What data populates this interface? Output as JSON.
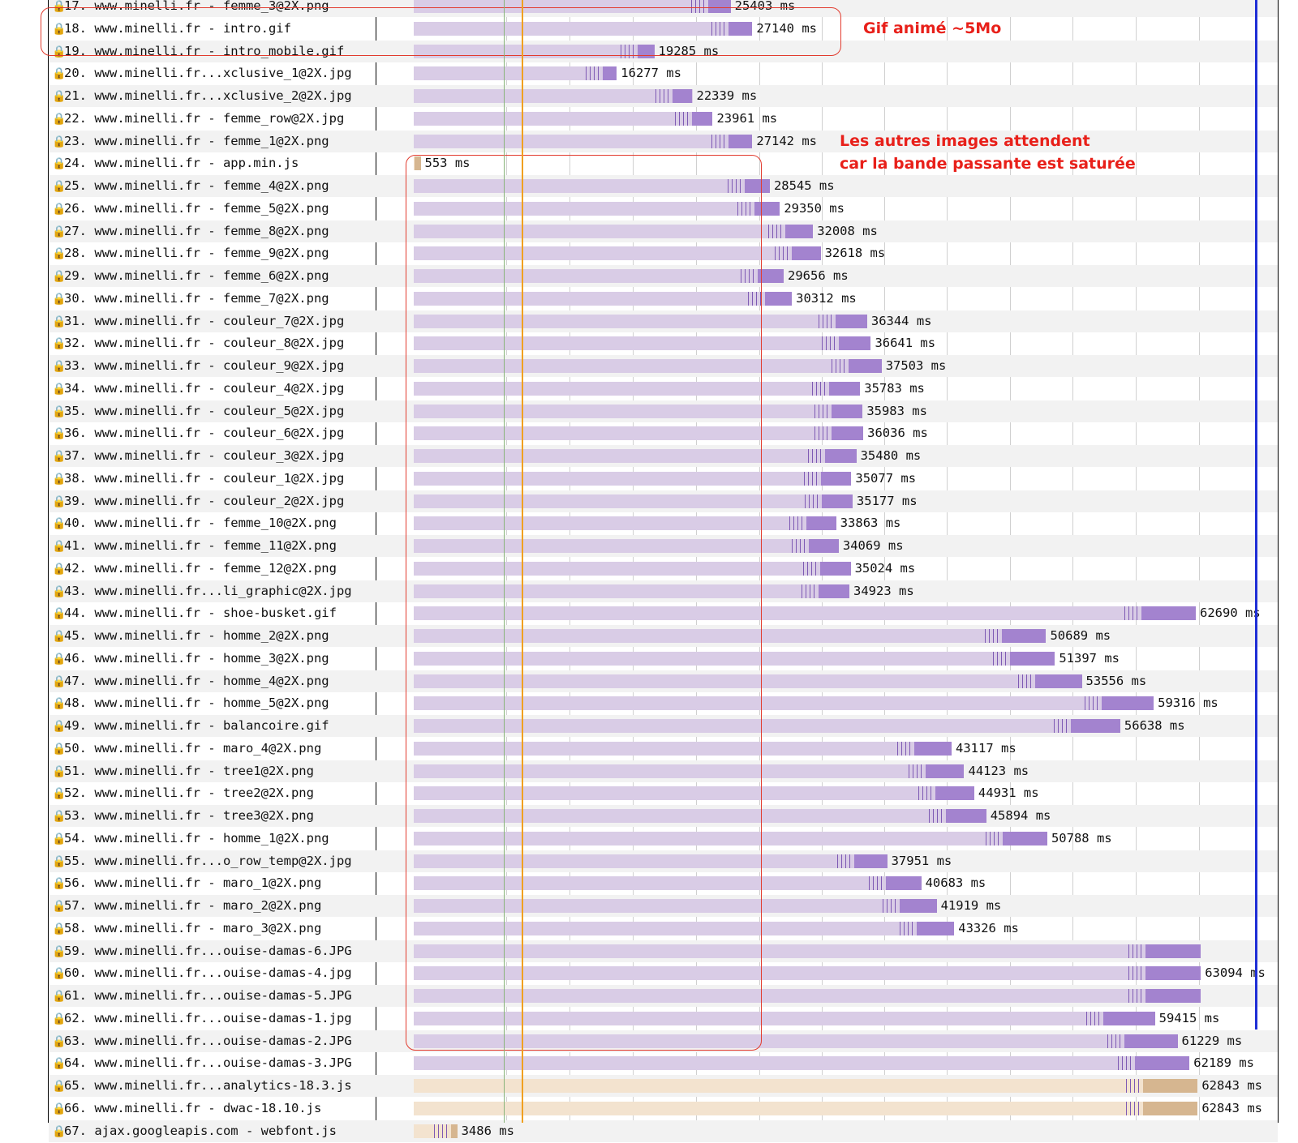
{
  "requests": [
    {
      "label": "17. www.minelli.fr - femme_3@2X.png",
      "start_ms": 0,
      "end_ms": 25403,
      "duration": "25403 ms",
      "type": "image",
      "cut": true
    },
    {
      "label": "18. www.minelli.fr - intro.gif",
      "start_ms": 0,
      "end_ms": 27140,
      "duration": "27140 ms",
      "type": "image"
    },
    {
      "label": "19. www.minelli.fr - intro_mobile.gif",
      "start_ms": 0,
      "end_ms": 19285,
      "duration": "19285 ms",
      "type": "image"
    },
    {
      "label": "20. www.minelli.fr...xclusive_1@2X.jpg",
      "start_ms": 0,
      "end_ms": 16277,
      "duration": "16277 ms",
      "type": "image"
    },
    {
      "label": "21. www.minelli.fr...xclusive_2@2X.jpg",
      "start_ms": 0,
      "end_ms": 22339,
      "duration": "22339 ms",
      "type": "image"
    },
    {
      "label": "22. www.minelli.fr - femme_row@2X.jpg",
      "start_ms": 0,
      "end_ms": 23961,
      "duration": "23961 ms",
      "type": "image"
    },
    {
      "label": "23. www.minelli.fr - femme_1@2X.png",
      "start_ms": 0,
      "end_ms": 27142,
      "duration": "27142 ms",
      "type": "image"
    },
    {
      "label": "24. www.minelli.fr - app.min.js",
      "start_ms": 0,
      "end_ms": 553,
      "duration": "553 ms",
      "type": "script"
    },
    {
      "label": "25. www.minelli.fr - femme_4@2X.png",
      "start_ms": 0,
      "end_ms": 28545,
      "duration": "28545 ms",
      "type": "image"
    },
    {
      "label": "26. www.minelli.fr - femme_5@2X.png",
      "start_ms": 0,
      "end_ms": 29350,
      "duration": "29350 ms",
      "type": "image"
    },
    {
      "label": "27. www.minelli.fr - femme_8@2X.png",
      "start_ms": 0,
      "end_ms": 32008,
      "duration": "32008 ms",
      "type": "image"
    },
    {
      "label": "28. www.minelli.fr - femme_9@2X.png",
      "start_ms": 0,
      "end_ms": 32618,
      "duration": "32618 ms",
      "type": "image"
    },
    {
      "label": "29. www.minelli.fr - femme_6@2X.png",
      "start_ms": 0,
      "end_ms": 29656,
      "duration": "29656 ms",
      "type": "image"
    },
    {
      "label": "30. www.minelli.fr - femme_7@2X.png",
      "start_ms": 0,
      "end_ms": 30312,
      "duration": "30312 ms",
      "type": "image"
    },
    {
      "label": "31. www.minelli.fr - couleur_7@2X.jpg",
      "start_ms": 0,
      "end_ms": 36344,
      "duration": "36344 ms",
      "type": "image"
    },
    {
      "label": "32. www.minelli.fr - couleur_8@2X.jpg",
      "start_ms": 0,
      "end_ms": 36641,
      "duration": "36641 ms",
      "type": "image"
    },
    {
      "label": "33. www.minelli.fr - couleur_9@2X.jpg",
      "start_ms": 0,
      "end_ms": 37503,
      "duration": "37503 ms",
      "type": "image"
    },
    {
      "label": "34. www.minelli.fr - couleur_4@2X.jpg",
      "start_ms": 0,
      "end_ms": 35783,
      "duration": "35783 ms",
      "type": "image"
    },
    {
      "label": "35. www.minelli.fr - couleur_5@2X.jpg",
      "start_ms": 0,
      "end_ms": 35983,
      "duration": "35983 ms",
      "type": "image"
    },
    {
      "label": "36. www.minelli.fr - couleur_6@2X.jpg",
      "start_ms": 0,
      "end_ms": 36036,
      "duration": "36036 ms",
      "type": "image"
    },
    {
      "label": "37. www.minelli.fr - couleur_3@2X.jpg",
      "start_ms": 0,
      "end_ms": 35480,
      "duration": "35480 ms",
      "type": "image"
    },
    {
      "label": "38. www.minelli.fr - couleur_1@2X.jpg",
      "start_ms": 0,
      "end_ms": 35077,
      "duration": "35077 ms",
      "type": "image"
    },
    {
      "label": "39. www.minelli.fr - couleur_2@2X.jpg",
      "start_ms": 0,
      "end_ms": 35177,
      "duration": "35177 ms",
      "type": "image"
    },
    {
      "label": "40. www.minelli.fr - femme_10@2X.png",
      "start_ms": 0,
      "end_ms": 33863,
      "duration": "33863 ms",
      "type": "image"
    },
    {
      "label": "41. www.minelli.fr - femme_11@2X.png",
      "start_ms": 0,
      "end_ms": 34069,
      "duration": "34069 ms",
      "type": "image"
    },
    {
      "label": "42. www.minelli.fr - femme_12@2X.png",
      "start_ms": 0,
      "end_ms": 35024,
      "duration": "35024 ms",
      "type": "image"
    },
    {
      "label": "43. www.minelli.fr...li_graphic@2X.jpg",
      "start_ms": 0,
      "end_ms": 34923,
      "duration": "34923 ms",
      "type": "image"
    },
    {
      "label": "44. www.minelli.fr - shoe-busket.gif",
      "start_ms": 0,
      "end_ms": 62690,
      "duration": "62690 ms",
      "type": "image"
    },
    {
      "label": "45. www.minelli.fr - homme_2@2X.png",
      "start_ms": 0,
      "end_ms": 50689,
      "duration": "50689 ms",
      "type": "image"
    },
    {
      "label": "46. www.minelli.fr - homme_3@2X.png",
      "start_ms": 0,
      "end_ms": 51397,
      "duration": "51397 ms",
      "type": "image"
    },
    {
      "label": "47. www.minelli.fr - homme_4@2X.png",
      "start_ms": 0,
      "end_ms": 53556,
      "duration": "53556 ms",
      "type": "image"
    },
    {
      "label": "48. www.minelli.fr - homme_5@2X.png",
      "start_ms": 0,
      "end_ms": 59316,
      "duration": "59316 ms",
      "type": "image"
    },
    {
      "label": "49. www.minelli.fr - balancoire.gif",
      "start_ms": 0,
      "end_ms": 56638,
      "duration": "56638 ms",
      "type": "image"
    },
    {
      "label": "50. www.minelli.fr - maro_4@2X.png",
      "start_ms": 0,
      "end_ms": 43117,
      "duration": "43117 ms",
      "type": "image"
    },
    {
      "label": "51. www.minelli.fr - tree1@2X.png",
      "start_ms": 0,
      "end_ms": 44123,
      "duration": "44123 ms",
      "type": "image"
    },
    {
      "label": "52. www.minelli.fr - tree2@2X.png",
      "start_ms": 0,
      "end_ms": 44931,
      "duration": "44931 ms",
      "type": "image"
    },
    {
      "label": "53. www.minelli.fr - tree3@2X.png",
      "start_ms": 0,
      "end_ms": 45894,
      "duration": "45894 ms",
      "type": "image"
    },
    {
      "label": "54. www.minelli.fr - homme_1@2X.png",
      "start_ms": 0,
      "end_ms": 50788,
      "duration": "50788 ms",
      "type": "image"
    },
    {
      "label": "55. www.minelli.fr...o_row_temp@2X.jpg",
      "start_ms": 0,
      "end_ms": 37951,
      "duration": "37951 ms",
      "type": "image"
    },
    {
      "label": "56. www.minelli.fr - maro_1@2X.png",
      "start_ms": 0,
      "end_ms": 40683,
      "duration": "40683 ms",
      "type": "image"
    },
    {
      "label": "57. www.minelli.fr - maro_2@2X.png",
      "start_ms": 0,
      "end_ms": 41919,
      "duration": "41919 ms",
      "type": "image"
    },
    {
      "label": "58. www.minelli.fr - maro_3@2X.png",
      "start_ms": 0,
      "end_ms": 43326,
      "duration": "43326 ms",
      "type": "image"
    },
    {
      "label": "59. www.minelli.fr...ouise-damas-6.JPG",
      "start_ms": 0,
      "end_ms": 63094,
      "duration": "",
      "type": "image"
    },
    {
      "label": "60. www.minelli.fr...ouise-damas-4.jpg",
      "start_ms": 0,
      "end_ms": 63094,
      "duration": "63094 ms",
      "type": "image"
    },
    {
      "label": "61. www.minelli.fr...ouise-damas-5.JPG",
      "start_ms": 0,
      "end_ms": 63094,
      "duration": "",
      "type": "image"
    },
    {
      "label": "62. www.minelli.fr...ouise-damas-1.jpg",
      "start_ms": 0,
      "end_ms": 59415,
      "duration": "59415 ms",
      "type": "image"
    },
    {
      "label": "63. www.minelli.fr...ouise-damas-2.JPG",
      "start_ms": 0,
      "end_ms": 61229,
      "duration": "61229 ms",
      "type": "image"
    },
    {
      "label": "64. www.minelli.fr...ouise-damas-3.JPG",
      "start_ms": 0,
      "end_ms": 62189,
      "duration": "62189 ms",
      "type": "image"
    },
    {
      "label": "65. www.minelli.fr...analytics-18.3.js",
      "start_ms": 0,
      "end_ms": 62843,
      "duration": "62843 ms",
      "type": "script"
    },
    {
      "label": "66. www.minelli.fr - dwac-18.10.js",
      "start_ms": 0,
      "end_ms": 62843,
      "duration": "62843 ms",
      "type": "script"
    },
    {
      "label": "67. ajax.googleapis.com - webfont.js",
      "start_ms": 0,
      "end_ms": 3486,
      "duration": "3486 ms",
      "type": "font-script"
    }
  ],
  "annotations": {
    "gif_note": "Gif animé ~5Mo",
    "wait_note_line1": "Les autres images attendent",
    "wait_note_line2": "car la bande passante est saturée"
  },
  "colors": {
    "image_bar": "#d9cce6",
    "image_download": "#a383cf",
    "script_bar": "#f3e3cf",
    "annotation_red": "#e8201a",
    "onload_line": "#1f2fd6"
  },
  "icons": {
    "secure": "lock-icon"
  }
}
